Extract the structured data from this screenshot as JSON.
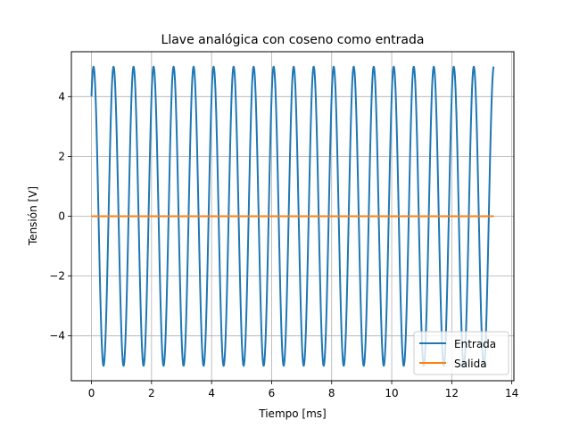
{
  "chart_data": {
    "type": "line",
    "title": "Llave analógica con coseno como entrada",
    "xlabel": "Tiempo [ms]",
    "ylabel": "Tensión [V]",
    "xlim": [
      -0.67,
      14.07
    ],
    "ylim": [
      -5.5,
      5.5
    ],
    "xticks": [
      0,
      2,
      4,
      6,
      8,
      10,
      12,
      14
    ],
    "xtick_labels": [
      "0",
      "2",
      "4",
      "6",
      "8",
      "10",
      "12",
      "14"
    ],
    "yticks": [
      -4,
      -2,
      0,
      2,
      4
    ],
    "ytick_labels": [
      "−4",
      "−2",
      "0",
      "2",
      "4"
    ],
    "grid": true,
    "legend_position": "lower right",
    "series": [
      {
        "name": "Entrada",
        "color": "#1f77b4",
        "kind": "cosine",
        "amplitude": 5,
        "frequency_khz": 1.5,
        "phase_rad": -0.64,
        "x_start": 0,
        "x_end": 13.4
      },
      {
        "name": "Salida",
        "color": "#ff7f0e",
        "kind": "constant",
        "value": 0,
        "x_start": 0,
        "x_end": 13.4
      }
    ]
  }
}
